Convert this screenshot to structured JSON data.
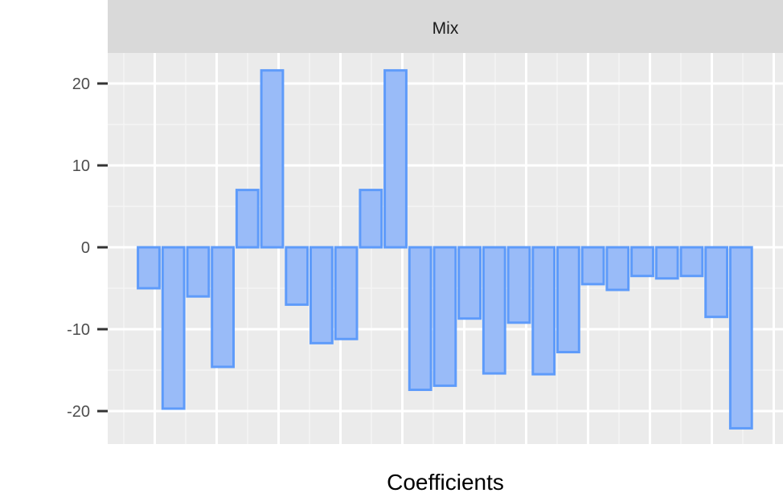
{
  "chart_data": {
    "type": "bar",
    "facet_label": "Mix",
    "xlabel": "Coefficients",
    "ylabel": "",
    "ylim": [
      -24,
      24
    ],
    "yticks": [
      -20,
      -10,
      0,
      10,
      20
    ],
    "ytick_labels": [
      "-20",
      "-10",
      "0",
      "10",
      "20"
    ],
    "grid": true,
    "values": [
      -5,
      -19.7,
      -6,
      -14.6,
      7,
      21.6,
      -7,
      -11.7,
      -11.2,
      7,
      21.6,
      -17.4,
      -16.9,
      -8.7,
      -15.4,
      -9.2,
      -15.5,
      -12.8,
      -4.5,
      -5.2,
      -3.5,
      -3.8,
      -3.5,
      -8.5,
      -22.1
    ]
  },
  "colors": {
    "bar_fill": "#99BBF8",
    "bar_stroke": "#5E9BFA",
    "panel_bg": "#EBEBEB",
    "strip_bg": "#D9D9D9",
    "grid_major": "#FFFFFF",
    "grid_minor": "#F5F5F5",
    "tick_text": "#4D4D4D",
    "tick_mark": "#333333"
  }
}
